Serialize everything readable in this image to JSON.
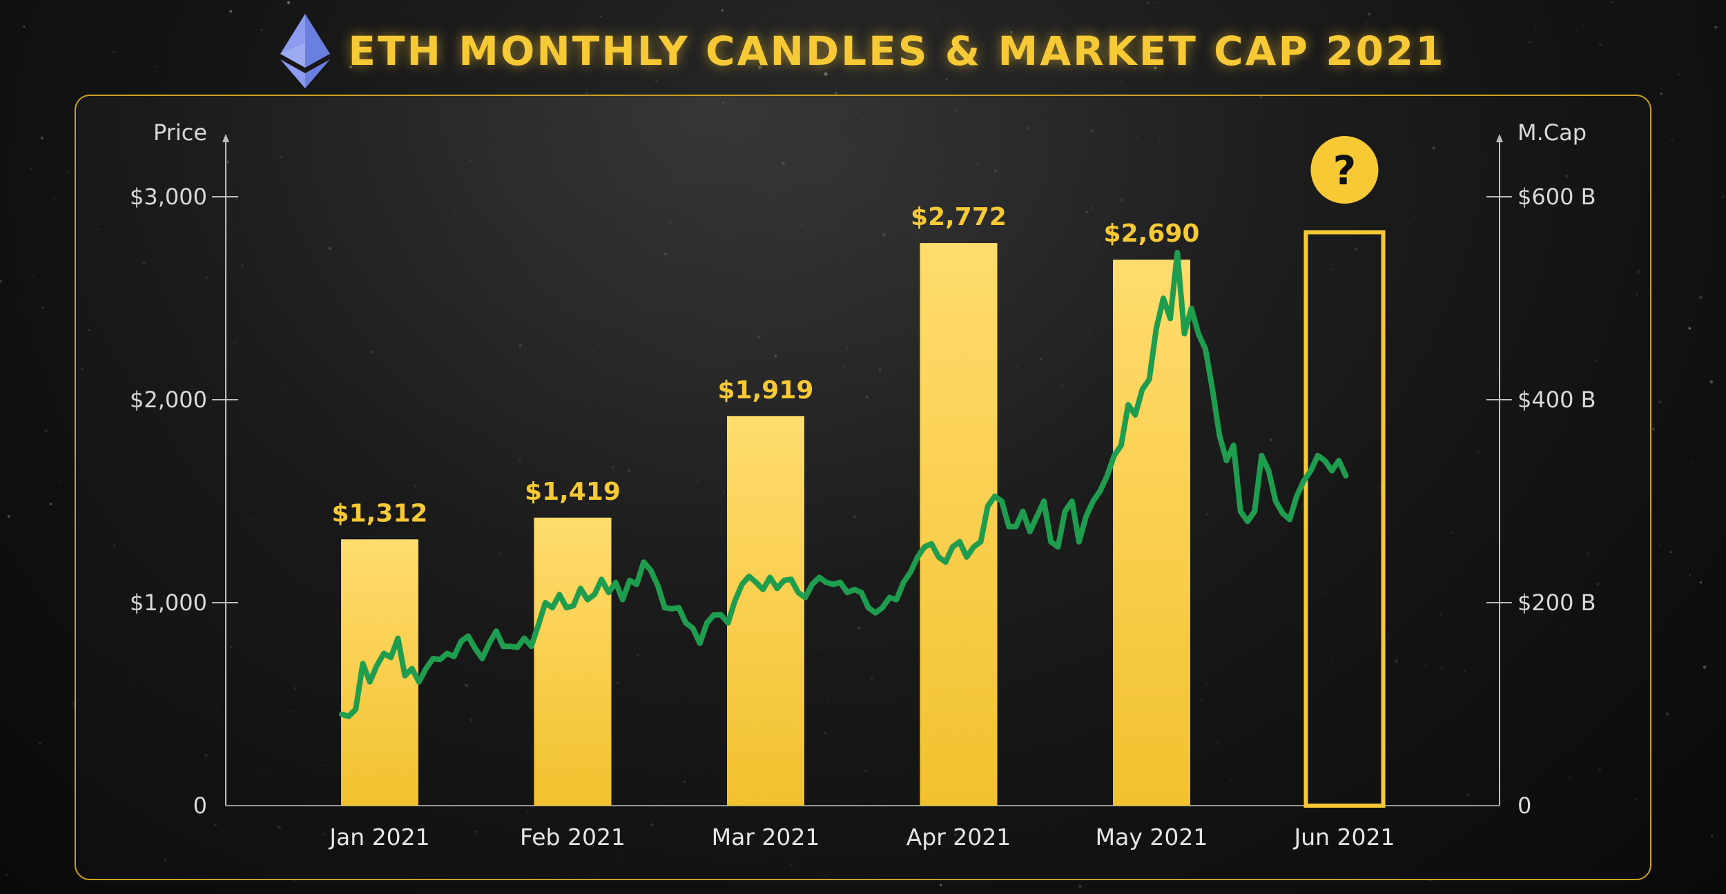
{
  "header": {
    "title": "ETH MONTHLY CANDLES & MARKET CAP 2021",
    "logo_icon": "ethereum-diamond-icon"
  },
  "colors": {
    "accent": "#f7c935",
    "bar_top": "#ffdc6e",
    "bar_bottom": "#f2c12e",
    "line": "#1f9d4f",
    "panel_border": "#c9a227"
  },
  "chart_data": {
    "type": "bar",
    "title": "ETH MONTHLY CANDLES & MARKET CAP 2021",
    "categories": [
      "Jan 2021",
      "Feb 2021",
      "Mar 2021",
      "Apr 2021",
      "May 2021",
      "Jun 2021"
    ],
    "series": [
      {
        "name": "Price",
        "values": [
          1312,
          1419,
          1919,
          2772,
          2690,
          null
        ],
        "labels": [
          "$1,312",
          "$1,419",
          "$1,919",
          "$2,772",
          "$2,690",
          ""
        ]
      }
    ],
    "highlight": {
      "category": "Jun 2021",
      "value": 2825,
      "badge": "?"
    },
    "left_axis": {
      "label": "Price",
      "ylim": [
        0,
        3200
      ],
      "ticks": [
        0,
        1000,
        2000,
        3000
      ],
      "tick_labels": [
        "0",
        "$1,000",
        "$2,000",
        "$3,000"
      ]
    },
    "right_axis": {
      "label": "M.Cap",
      "ylim": [
        0,
        640
      ],
      "ticks": [
        0,
        200,
        400,
        600
      ],
      "tick_labels": [
        "0",
        "$200 B",
        "$400 B",
        "$600 B"
      ]
    },
    "market_cap_line": {
      "name": "Market Cap (B)",
      "x_start": 0.0,
      "x_end": 5.2,
      "values": [
        90,
        88,
        95,
        140,
        122,
        138,
        150,
        146,
        165,
        128,
        135,
        122,
        135,
        145,
        144,
        150,
        147,
        162,
        167,
        155,
        145,
        160,
        172,
        157,
        157,
        156,
        165,
        157,
        178,
        200,
        195,
        208,
        195,
        197,
        214,
        203,
        208,
        223,
        210,
        220,
        203,
        222,
        218,
        240,
        232,
        217,
        195,
        194,
        195,
        180,
        175,
        160,
        180,
        188,
        188,
        180,
        202,
        218,
        226,
        220,
        213,
        225,
        214,
        222,
        223,
        210,
        205,
        218,
        225,
        220,
        218,
        220,
        210,
        213,
        210,
        195,
        190,
        195,
        205,
        203,
        220,
        230,
        245,
        255,
        258,
        245,
        240,
        255,
        260,
        245,
        255,
        260,
        295,
        305,
        300,
        275,
        275,
        290,
        270,
        285,
        300,
        260,
        255,
        290,
        300,
        260,
        285,
        300,
        310,
        325,
        345,
        355,
        395,
        385,
        410,
        420,
        470,
        500,
        480,
        545,
        465,
        490,
        465,
        450,
        410,
        365,
        340,
        355,
        290,
        280,
        290,
        345,
        330,
        300,
        288,
        282,
        305,
        320,
        330,
        345,
        340,
        330,
        340,
        325
      ]
    }
  }
}
